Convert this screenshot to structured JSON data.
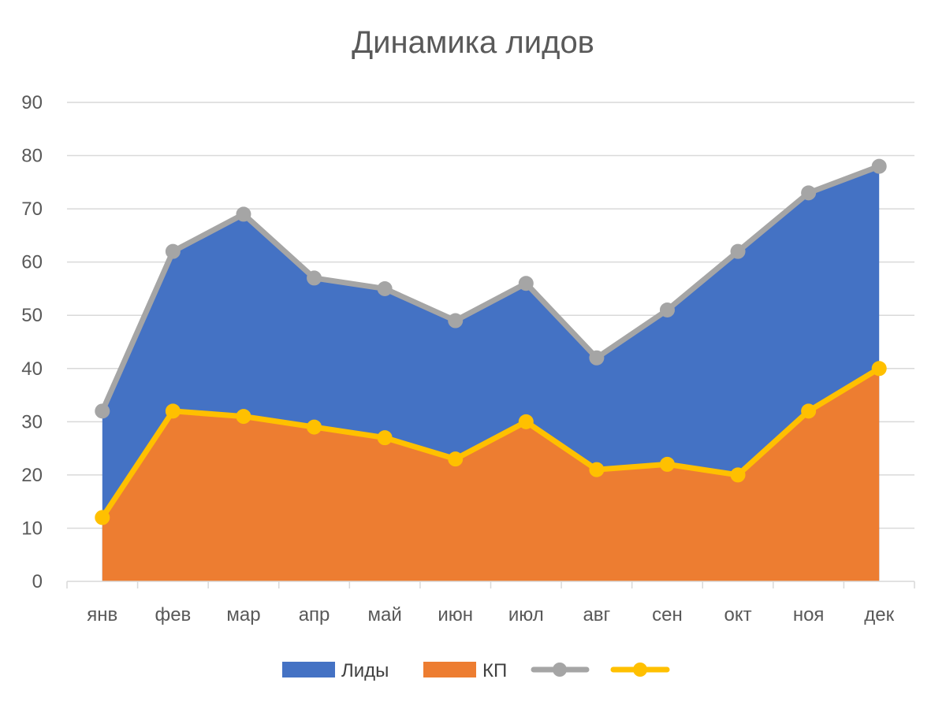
{
  "chart_data": {
    "type": "area",
    "title": "Динамика лидов",
    "xlabel": "",
    "ylabel": "",
    "categories": [
      "янв",
      "фев",
      "мар",
      "апр",
      "май",
      "июн",
      "июл",
      "авг",
      "сен",
      "окт",
      "ноя",
      "дек"
    ],
    "ylim": [
      0,
      90
    ],
    "yticks": [
      0,
      10,
      20,
      30,
      40,
      50,
      60,
      70,
      80,
      90
    ],
    "grid": true,
    "legend_position": "bottom",
    "series": [
      {
        "name": "Лиды",
        "kind": "area",
        "color": "#4472C4",
        "values": [
          32,
          62,
          69,
          57,
          55,
          49,
          56,
          42,
          51,
          62,
          73,
          78
        ]
      },
      {
        "name": "КП",
        "kind": "area",
        "color": "#ED7D31",
        "values": [
          12,
          32,
          31,
          29,
          27,
          23,
          30,
          21,
          22,
          20,
          32,
          40
        ]
      },
      {
        "name": "",
        "kind": "line-markers",
        "color": "#A5A5A5",
        "values": [
          32,
          62,
          69,
          57,
          55,
          49,
          56,
          42,
          51,
          62,
          73,
          78
        ]
      },
      {
        "name": "",
        "kind": "line-markers",
        "color": "#FFC000",
        "values": [
          12,
          32,
          31,
          29,
          27,
          23,
          30,
          21,
          22,
          20,
          32,
          40
        ]
      }
    ]
  }
}
